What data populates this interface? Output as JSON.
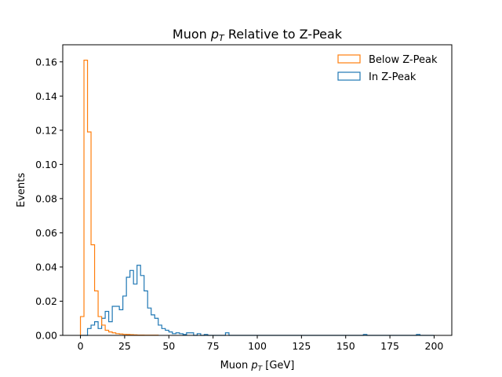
{
  "chart_data": {
    "type": "histogram",
    "title_parts": [
      "Muon ",
      "p",
      "T",
      " Relative to Z-Peak"
    ],
    "xlabel_parts": [
      "Muon ",
      "p",
      "T",
      " [GeV]"
    ],
    "ylabel": "Events",
    "xlim": [
      -10,
      210
    ],
    "ylim": [
      0,
      0.17
    ],
    "xticks": [
      0,
      25,
      50,
      75,
      100,
      125,
      150,
      175,
      200
    ],
    "xtick_labels": [
      "0",
      "25",
      "50",
      "75",
      "100",
      "125",
      "150",
      "175",
      "200"
    ],
    "yticks": [
      0,
      0.02,
      0.04,
      0.06,
      0.08,
      0.1,
      0.12,
      0.14,
      0.16
    ],
    "ytick_labels": [
      "0.00",
      "0.02",
      "0.04",
      "0.06",
      "0.08",
      "0.10",
      "0.12",
      "0.14",
      "0.16"
    ],
    "grid": false,
    "legend_position": "top-right",
    "bin_edges_start": 0,
    "bin_width": 2,
    "series": [
      {
        "name": "Below Z-Peak",
        "color": "#ff7f0e",
        "values": [
          0.011,
          0.161,
          0.119,
          0.053,
          0.026,
          0.011,
          0.006,
          0.003,
          0.002,
          0.0015,
          0.001,
          0.0008,
          0.0006,
          0.0005,
          0.0004,
          0.0003,
          0.0002,
          0.0002,
          0.0001,
          0.0001,
          0.0001,
          0.0001
        ]
      },
      {
        "name": "In Z-Peak",
        "color": "#1f77b4",
        "values": [
          0,
          0,
          0.004,
          0.006,
          0.008,
          0.004,
          0.01,
          0.014,
          0.008,
          0.017,
          0.017,
          0.015,
          0.023,
          0.034,
          0.038,
          0.03,
          0.041,
          0.035,
          0.026,
          0.016,
          0.012,
          0.01,
          0.006,
          0.004,
          0.003,
          0.002,
          0.001,
          0.0015,
          0.001,
          0.0005,
          0.0015,
          0.0015,
          0,
          0.001,
          0,
          0.0005,
          0,
          0,
          0,
          0,
          0,
          0.0015,
          0,
          0,
          0,
          0,
          0,
          0,
          0,
          0,
          0,
          0,
          0,
          0,
          0,
          0,
          0,
          0,
          0,
          0,
          0,
          0,
          0,
          0,
          0,
          0,
          0,
          0,
          0,
          0,
          0,
          0,
          0,
          0,
          0,
          0,
          0,
          0,
          0,
          0,
          0.0005,
          0,
          0,
          0,
          0,
          0,
          0,
          0,
          0,
          0,
          0,
          0,
          0,
          0,
          0,
          0.0005,
          0,
          0,
          0,
          0
        ]
      }
    ]
  }
}
